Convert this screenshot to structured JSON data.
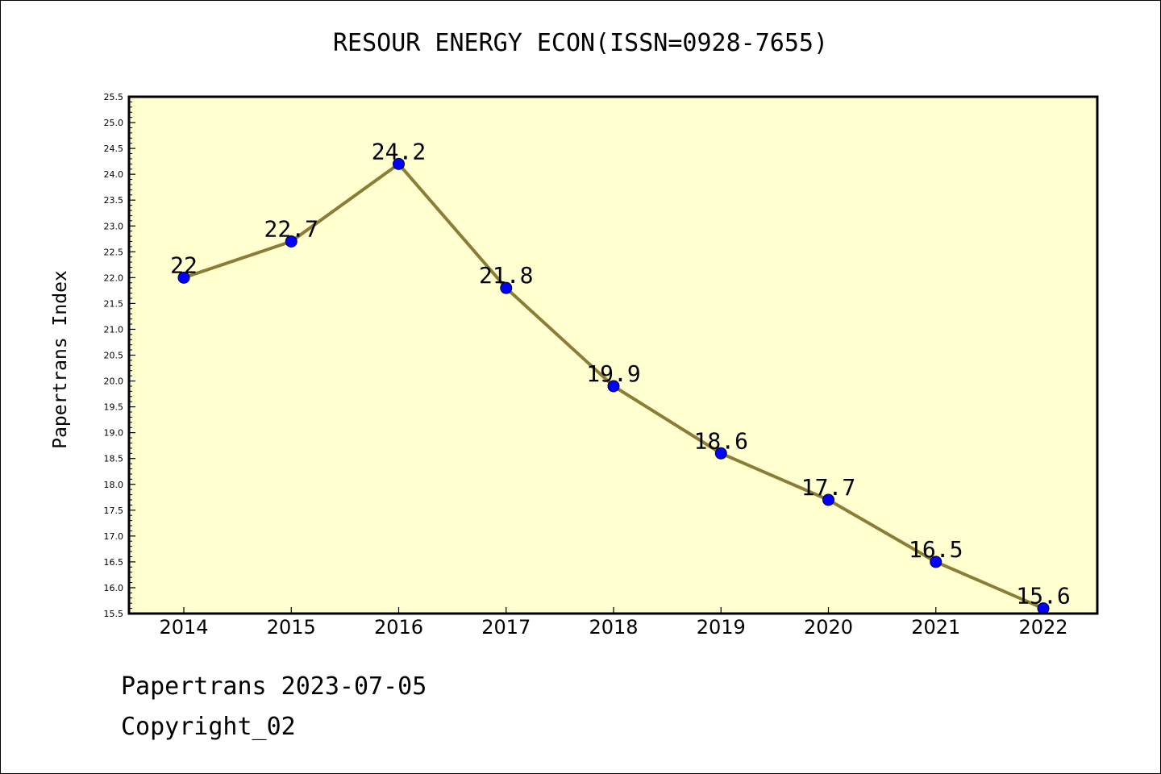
{
  "chart_data": {
    "type": "line",
    "title": "RESOUR ENERGY ECON(ISSN=0928-7655)",
    "xlabel": "",
    "ylabel": "Papertrans Index",
    "categories": [
      "2014",
      "2015",
      "2016",
      "2017",
      "2018",
      "2019",
      "2020",
      "2021",
      "2022"
    ],
    "series": [
      {
        "values": [
          22,
          22.7,
          24.2,
          21.8,
          19.9,
          18.6,
          17.7,
          16.5,
          15.6
        ],
        "labels": [
          "22",
          "22.7",
          "24.2",
          "21.8",
          "19.9",
          "18.6",
          "17.7",
          "16.5",
          "15.6"
        ]
      }
    ],
    "ylim": [
      15.5,
      25.5
    ],
    "yticks": [
      "15.5",
      "16.0",
      "16.5",
      "17.0",
      "17.5",
      "18.0",
      "18.5",
      "19.0",
      "19.5",
      "20.0",
      "20.5",
      "21.0",
      "21.5",
      "22.0",
      "22.5",
      "23.0",
      "23.5",
      "24.0",
      "24.5",
      "25.0",
      "25.5"
    ],
    "grid": false,
    "legend": "none",
    "colors": {
      "plot_background": "#ffffd0",
      "line": "#8b7d35",
      "marker": "#0000ff"
    }
  },
  "footer": {
    "line1": "Papertrans 2023-07-05",
    "line2": "Copyright_02"
  }
}
